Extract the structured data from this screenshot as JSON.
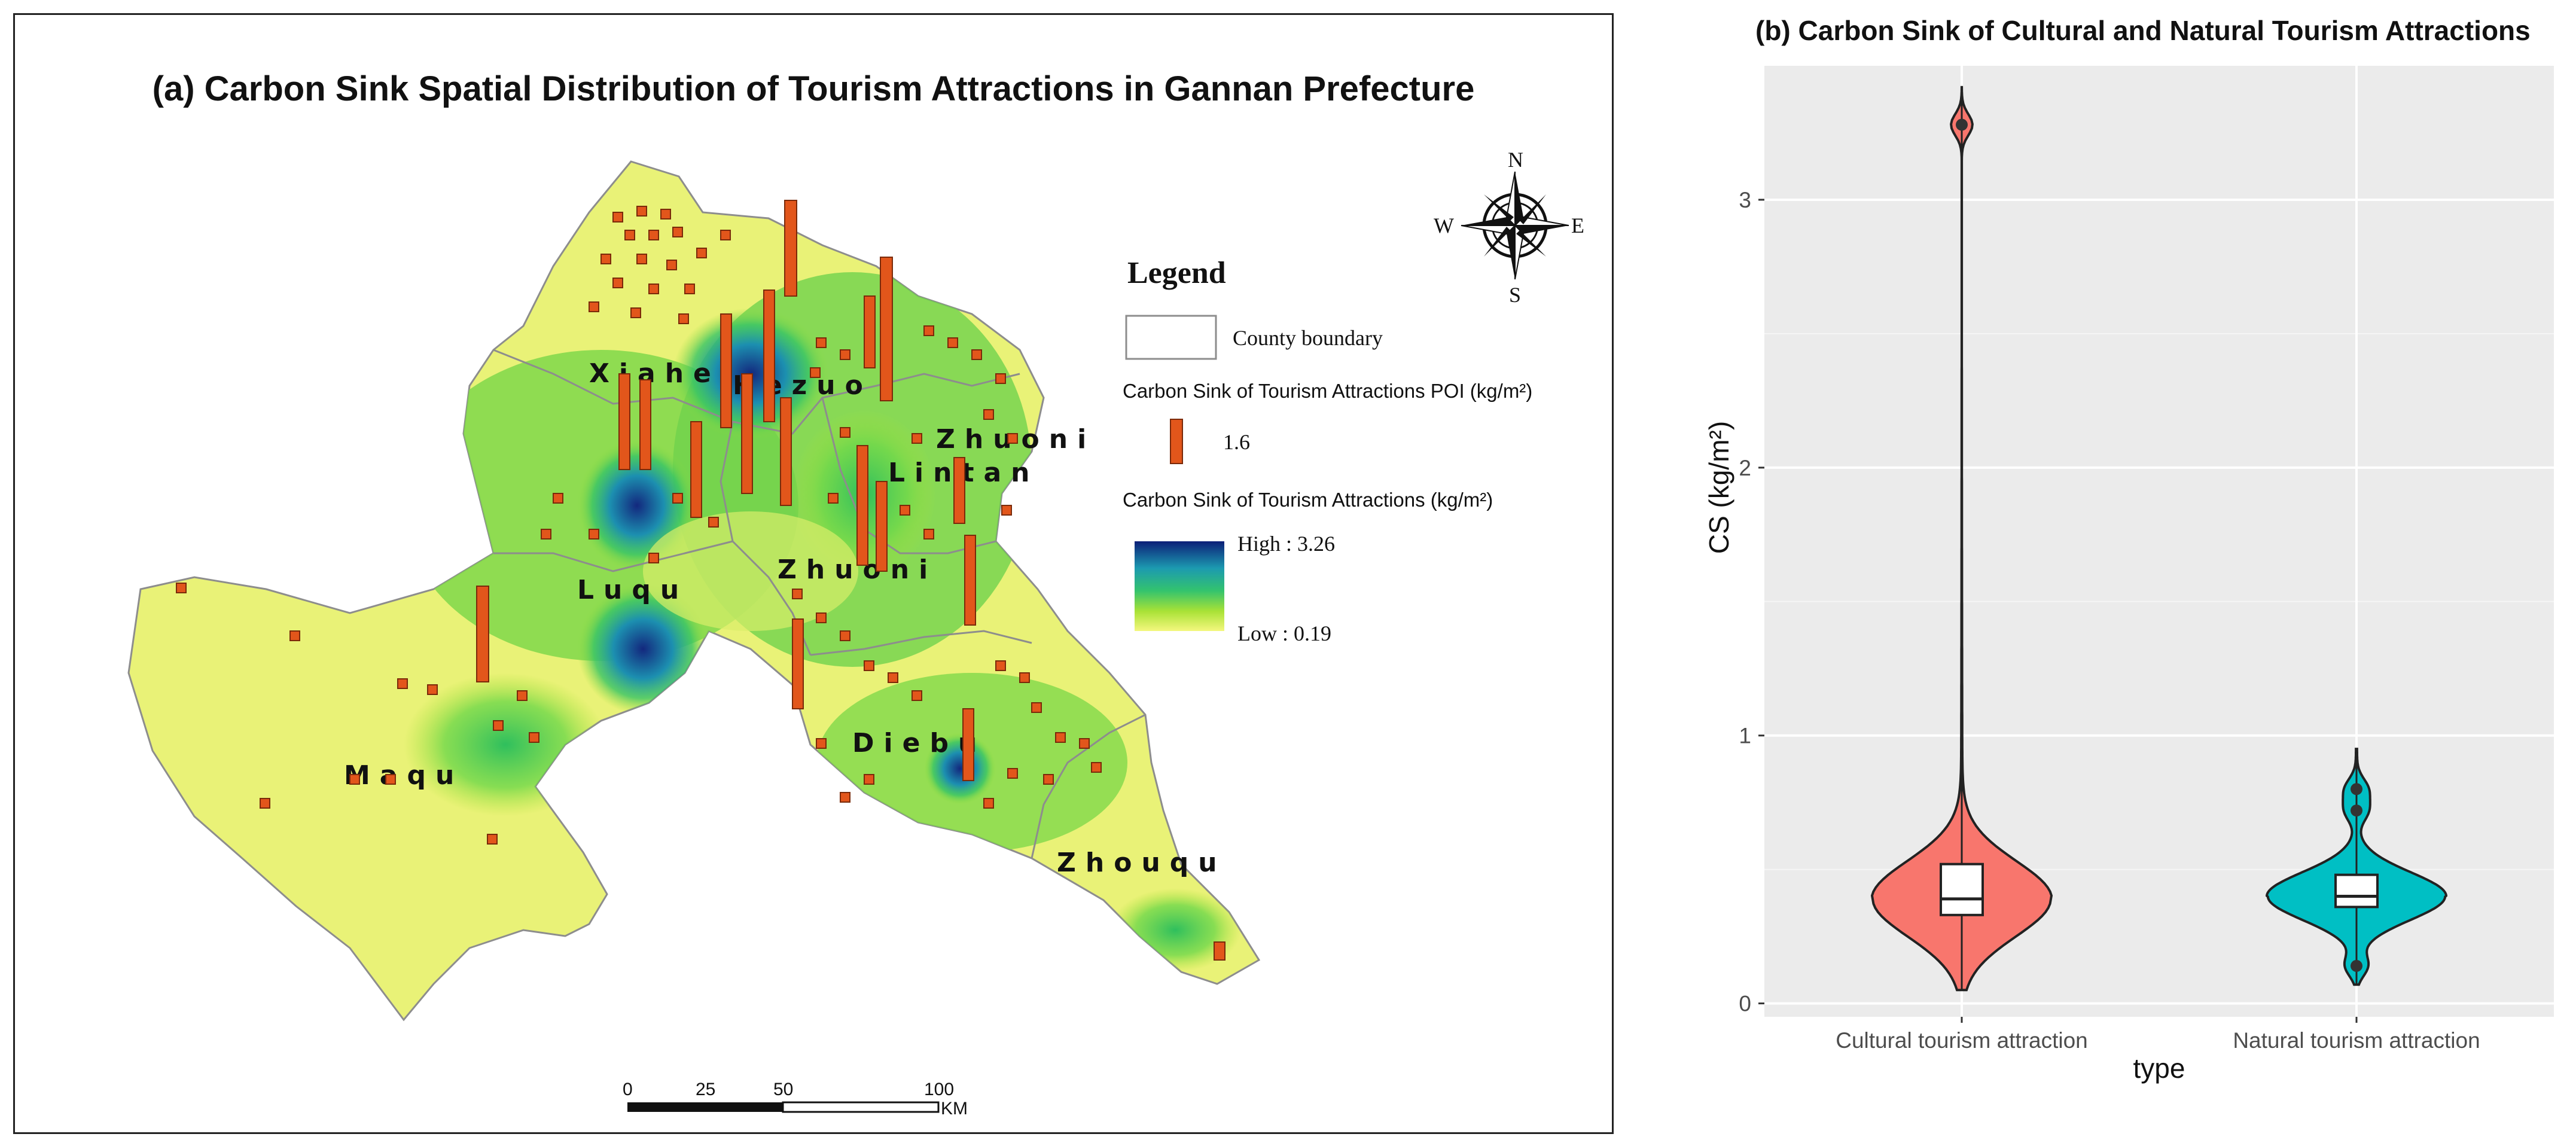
{
  "map": {
    "title": "(a) Carbon Sink Spatial Distribution of Tourism Attractions in Gannan Prefecture",
    "counties": [
      {
        "name": "Xiahe"
      },
      {
        "name": "Hezuo"
      },
      {
        "name": "Zhuoni"
      },
      {
        "name": "Lintan"
      },
      {
        "name": "Luqu"
      },
      {
        "name": "Zhuoni"
      },
      {
        "name": "Maqu"
      },
      {
        "name": "Diebu"
      },
      {
        "name": "Zhouqu"
      }
    ],
    "legend": {
      "heading": "Legend",
      "county_boundary": "County boundary",
      "poi_title": "Carbon Sink of Tourism Attractions POI (kg/m²)",
      "poi_value": "1.6",
      "surface_title": "Carbon Sink of Tourism Attractions (kg/m²)",
      "high_label": "High : 3.26",
      "low_label": "Low : 0.19",
      "ramp_colors": [
        "#0c1f78",
        "#1c9ab0",
        "#33c36e",
        "#a9e236",
        "#f4f77e"
      ],
      "poi_color": "#e2561b"
    },
    "compass": {
      "n": "N",
      "s": "S",
      "e": "E",
      "w": "W"
    },
    "scale_bar": {
      "ticks": [
        "0",
        "25",
        "50",
        "100"
      ],
      "unit": "KM"
    },
    "colors": {
      "base_low": "#e9f277",
      "mid": "#8fdc3b",
      "green": "#3fc45d",
      "high": "#13287e",
      "boundary": "#8d8d8d"
    }
  },
  "violin": {
    "title": "(b) Carbon Sink of Cultural and Natural Tourism Attractions",
    "chart_data": {
      "type": "violin",
      "categories": [
        "Cultural tourism attraction",
        "Natural tourism attraction"
      ],
      "xlabel": "type",
      "ylabel": "CS (kg/m²)",
      "ylim": [
        -0.05,
        3.5
      ],
      "yticks": [
        0,
        1,
        2,
        3
      ],
      "grid": true,
      "series": [
        {
          "name": "Cultural tourism attraction",
          "color": "#f8766d",
          "min": 0.05,
          "q1": 0.33,
          "median": 0.39,
          "q3": 0.52,
          "max": 3.42,
          "outliers": [
            3.28
          ]
        },
        {
          "name": "Natural tourism attraction",
          "color": "#00bfc4",
          "min": 0.07,
          "q1": 0.36,
          "median": 0.4,
          "q3": 0.48,
          "max": 0.95,
          "outliers": [
            0.14,
            0.72,
            0.8
          ]
        }
      ]
    }
  }
}
